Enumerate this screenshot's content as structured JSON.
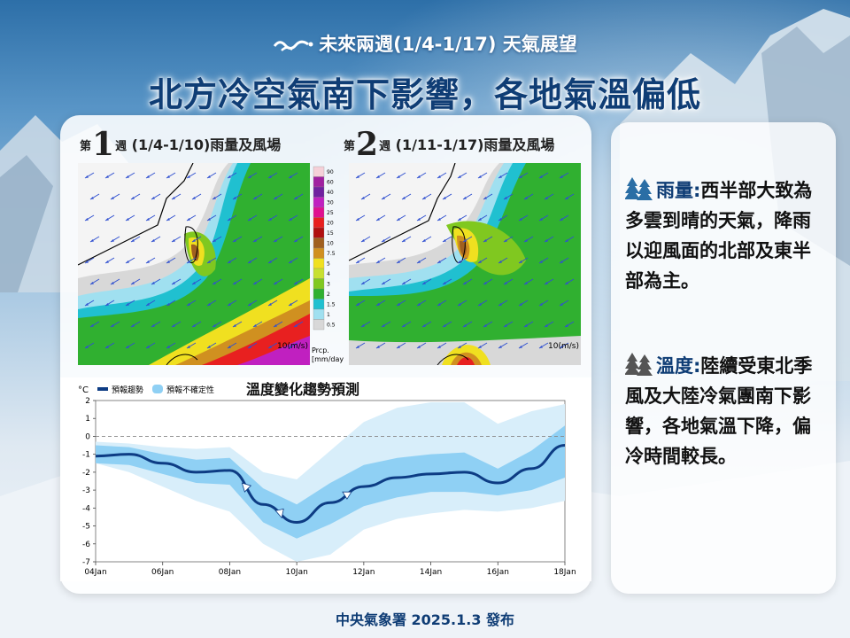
{
  "header": {
    "subtitle": "未來兩週(1/4-1/17) 天氣展望",
    "title": "北方冷空氣南下影響，各地氣溫偏低"
  },
  "week1": {
    "prefix": "第",
    "number": "1",
    "suffix": "週",
    "range": " (1/4-1/10)雨量及風場"
  },
  "week2": {
    "prefix": "第",
    "number": "2",
    "suffix": "週",
    "range": " (1/11-1/17)雨量及風場"
  },
  "map": {
    "wind_label": "10(m/s)",
    "colorbar_labels": [
      "90",
      "60",
      "40",
      "30",
      "25",
      "20",
      "15",
      "10",
      "7.5",
      "5",
      "4",
      "3",
      "2",
      "1.5",
      "1",
      "0.5"
    ],
    "colorbar_colors": [
      "#f5d0d8",
      "#a020a0",
      "#7020a0",
      "#c020c0",
      "#e01090",
      "#e82020",
      "#b01010",
      "#a06020",
      "#d09020",
      "#f0e020",
      "#c8e030",
      "#80c820",
      "#30b030",
      "#20c0d0",
      "#a0e0f0",
      "#d8d8d8"
    ],
    "colorbar_unit_1": "Prcp.",
    "colorbar_unit_2": "[mm/day"
  },
  "chart_data": {
    "type": "line",
    "title": "溫度變化趨勢預測",
    "unit": "°C",
    "legend": [
      "預報趨勢",
      "預報不確定性"
    ],
    "x_tick_labels": [
      "04Jan",
      "06Jan",
      "08Jan",
      "10Jan",
      "12Jan",
      "14Jan",
      "16Jan",
      "18Jan"
    ],
    "y_ticks": [
      2,
      1,
      0,
      -1,
      -2,
      -3,
      -4,
      -5,
      -6,
      -7
    ],
    "ylim": [
      -7,
      2
    ],
    "x": [
      "04Jan",
      "05Jan",
      "06Jan",
      "07Jan",
      "08Jan",
      "09Jan",
      "10Jan",
      "11Jan",
      "12Jan",
      "13Jan",
      "14Jan",
      "15Jan",
      "16Jan",
      "17Jan",
      "18Jan"
    ],
    "series": [
      {
        "name": "預報趨勢",
        "values": [
          -1.1,
          -1.0,
          -1.5,
          -2.0,
          -1.9,
          -3.8,
          -4.8,
          -3.7,
          -2.8,
          -2.3,
          -2.1,
          -2.0,
          -2.6,
          -1.8,
          -0.5
        ]
      }
    ],
    "inner_band_lower": [
      -1.5,
      -1.6,
      -2.1,
      -2.6,
      -2.7,
      -4.8,
      -5.7,
      -4.9,
      -3.9,
      -3.4,
      -3.1,
      -3.1,
      -3.3,
      -3.0,
      -2.3
    ],
    "inner_band_upper": [
      -0.5,
      -0.6,
      -1.0,
      -1.3,
      -1.2,
      -2.9,
      -3.8,
      -2.6,
      -1.6,
      -1.2,
      -1.0,
      -0.9,
      -1.8,
      -0.8,
      0.6
    ],
    "outer_band_lower": [
      -1.5,
      -2.0,
      -2.8,
      -3.6,
      -4.2,
      -6.0,
      -7.0,
      -6.6,
      -5.2,
      -4.6,
      -4.3,
      -4.1,
      -4.2,
      -4.0,
      -3.6
    ],
    "outer_band_upper": [
      -0.3,
      -0.4,
      -0.6,
      -0.7,
      -0.6,
      -2.0,
      -2.4,
      -0.8,
      0.8,
      1.6,
      1.9,
      1.9,
      0.7,
      1.4,
      1.8
    ],
    "reference_line": 0
  },
  "side": {
    "rain_head": "雨量:",
    "rain_text": "西半部大致為多雲到晴的天氣，降雨以迎風面的北部及東半部為主。",
    "temp_head": "溫度:",
    "temp_text": "陸續受東北季風及大陸冷氣團南下影響，各地氣溫下降，偏冷時間較長。"
  },
  "footer": {
    "text": "中央氣象署 2025.1.3 發布"
  }
}
